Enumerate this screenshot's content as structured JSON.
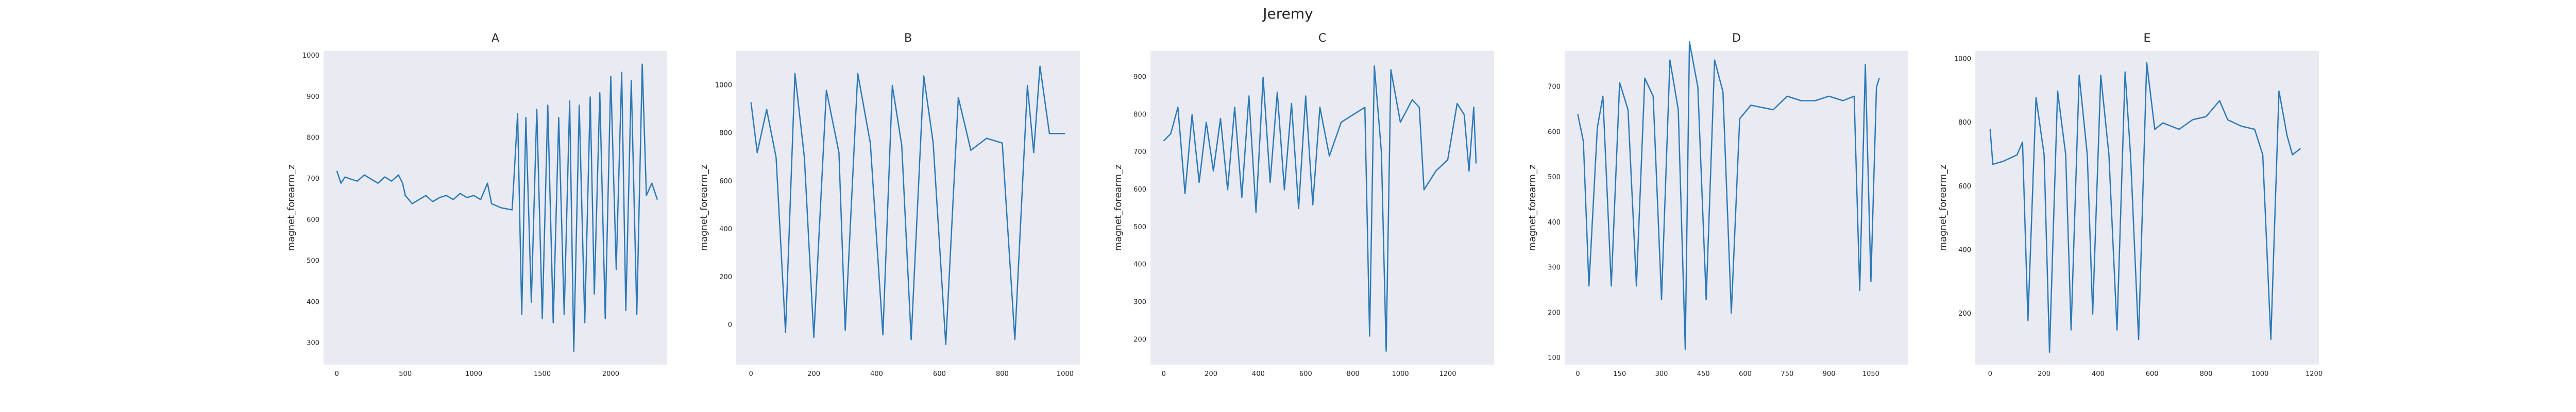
{
  "title": "Jeremy",
  "chart_data": [
    {
      "type": "line",
      "title": "A",
      "ylabel": "magnet_forearm_z",
      "color": "#2a7ab8",
      "xlim": [
        -97,
        2412
      ],
      "ylim": [
        248,
        1012
      ],
      "xticks": [
        0,
        500,
        1000,
        1500,
        2000
      ],
      "yticks": [
        300,
        400,
        500,
        600,
        700,
        800,
        900,
        1000
      ],
      "x": [
        0,
        30,
        60,
        100,
        150,
        200,
        250,
        300,
        350,
        400,
        450,
        480,
        500,
        550,
        600,
        650,
        700,
        750,
        800,
        850,
        900,
        950,
        1000,
        1050,
        1100,
        1130,
        1200,
        1280,
        1320,
        1350,
        1380,
        1420,
        1460,
        1500,
        1540,
        1580,
        1620,
        1660,
        1700,
        1730,
        1770,
        1810,
        1850,
        1880,
        1920,
        1960,
        2000,
        2040,
        2080,
        2110,
        2150,
        2190,
        2230,
        2260,
        2300,
        2340
      ],
      "values": [
        720,
        690,
        705,
        700,
        695,
        710,
        700,
        690,
        705,
        695,
        710,
        690,
        660,
        640,
        650,
        660,
        645,
        655,
        660,
        650,
        665,
        655,
        660,
        650,
        690,
        640,
        630,
        625,
        860,
        370,
        850,
        400,
        870,
        360,
        880,
        350,
        850,
        370,
        890,
        280,
        880,
        350,
        900,
        420,
        910,
        360,
        950,
        480,
        960,
        380,
        940,
        370,
        980,
        660,
        690,
        650
      ]
    },
    {
      "type": "line",
      "title": "B",
      "ylabel": "magnet_forearm_z",
      "color": "#2a7ab8",
      "xlim": [
        -47,
        1047
      ],
      "ylim": [
        -164,
        1144
      ],
      "xticks": [
        0,
        200,
        400,
        600,
        800,
        1000
      ],
      "yticks": [
        0,
        200,
        400,
        600,
        800,
        1000
      ],
      "x": [
        0,
        20,
        50,
        80,
        110,
        140,
        170,
        200,
        240,
        280,
        300,
        340,
        380,
        420,
        450,
        480,
        510,
        550,
        580,
        620,
        660,
        700,
        750,
        800,
        840,
        880,
        900,
        920,
        950,
        1000
      ],
      "values": [
        930,
        720,
        900,
        700,
        -30,
        1050,
        700,
        -50,
        980,
        720,
        -20,
        1050,
        760,
        -40,
        1000,
        750,
        -60,
        1040,
        760,
        -80,
        950,
        730,
        780,
        760,
        -60,
        1000,
        720,
        1080,
        800,
        800
      ]
    },
    {
      "type": "line",
      "title": "C",
      "ylabel": "magnet_forearm_z",
      "color": "#2a7ab8",
      "xlim": [
        -56,
        1396
      ],
      "ylim": [
        134,
        970
      ],
      "xticks": [
        0,
        200,
        400,
        600,
        800,
        1000,
        1200
      ],
      "yticks": [
        200,
        300,
        400,
        500,
        600,
        700,
        800,
        900
      ],
      "x": [
        0,
        30,
        60,
        90,
        120,
        150,
        180,
        210,
        240,
        270,
        300,
        330,
        360,
        390,
        420,
        450,
        480,
        510,
        540,
        570,
        600,
        630,
        660,
        700,
        750,
        800,
        850,
        870,
        890,
        920,
        940,
        960,
        1000,
        1050,
        1080,
        1100,
        1150,
        1200,
        1240,
        1270,
        1290,
        1310,
        1320
      ],
      "values": [
        730,
        750,
        820,
        590,
        800,
        620,
        780,
        650,
        790,
        600,
        820,
        580,
        850,
        540,
        900,
        620,
        860,
        600,
        830,
        550,
        850,
        560,
        820,
        690,
        780,
        800,
        820,
        210,
        930,
        700,
        170,
        920,
        780,
        840,
        820,
        600,
        650,
        680,
        830,
        800,
        650,
        820,
        670
      ]
    },
    {
      "type": "line",
      "title": "D",
      "ylabel": "magnet_forearm_z",
      "color": "#2a7ab8",
      "xlim": [
        -47,
        1184
      ],
      "ylim": [
        86,
        780
      ],
      "xticks": [
        0,
        150,
        300,
        450,
        600,
        750,
        900,
        1050
      ],
      "yticks": [
        100,
        200,
        300,
        400,
        500,
        600,
        700
      ],
      "x": [
        0,
        20,
        40,
        70,
        90,
        120,
        150,
        180,
        210,
        240,
        270,
        300,
        330,
        360,
        385,
        400,
        430,
        460,
        490,
        520,
        550,
        580,
        620,
        700,
        750,
        800,
        850,
        900,
        950,
        990,
        1010,
        1030,
        1050,
        1070,
        1080
      ],
      "values": [
        640,
        580,
        260,
        610,
        680,
        260,
        710,
        650,
        260,
        720,
        680,
        230,
        760,
        650,
        120,
        800,
        700,
        230,
        760,
        690,
        200,
        630,
        660,
        650,
        680,
        670,
        670,
        680,
        670,
        680,
        250,
        750,
        270,
        700,
        720
      ]
    },
    {
      "type": "line",
      "title": "E",
      "ylabel": "magnet_forearm_z",
      "color": "#2a7ab8",
      "xlim": [
        -55,
        1218
      ],
      "ylim": [
        41,
        1026
      ],
      "xticks": [
        0,
        200,
        400,
        600,
        800,
        1000,
        1200
      ],
      "yticks": [
        200,
        400,
        600,
        800,
        1000
      ],
      "x": [
        0,
        10,
        50,
        100,
        120,
        140,
        170,
        200,
        220,
        250,
        280,
        300,
        330,
        360,
        380,
        410,
        440,
        470,
        500,
        520,
        550,
        580,
        610,
        640,
        700,
        750,
        800,
        850,
        880,
        930,
        980,
        1010,
        1040,
        1070,
        1100,
        1120,
        1150
      ],
      "values": [
        780,
        670,
        680,
        700,
        740,
        180,
        880,
        700,
        80,
        900,
        700,
        150,
        950,
        700,
        200,
        950,
        700,
        150,
        960,
        700,
        120,
        990,
        780,
        800,
        780,
        810,
        820,
        870,
        810,
        790,
        780,
        700,
        120,
        900,
        760,
        700,
        720
      ]
    }
  ]
}
